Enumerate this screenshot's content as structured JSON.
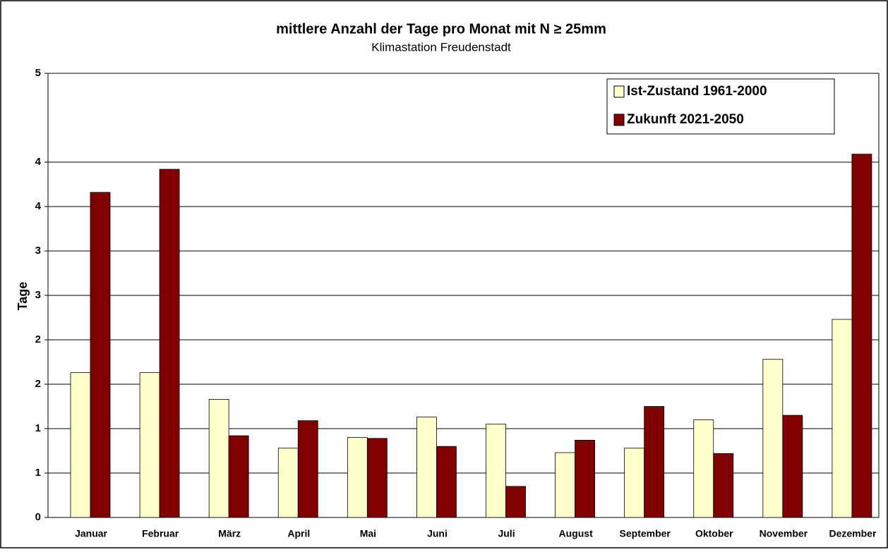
{
  "chart_data": {
    "type": "bar",
    "title": "mittlere Anzahl der Tage pro Monat mit N ≥  25mm",
    "subtitle": "Klimastation Freudenstadt",
    "y_label": "Tage",
    "categories": [
      "Januar",
      "Februar",
      "März",
      "April",
      "Mai",
      "Juni",
      "Juli",
      "August",
      "September",
      "Oktober",
      "November",
      "Dezember"
    ],
    "series": [
      {
        "name": "Ist-Zustand 1961-2000",
        "color": "#ffffcc",
        "values": [
          1.63,
          1.63,
          1.33,
          0.78,
          0.9,
          1.13,
          1.05,
          0.73,
          0.78,
          1.1,
          1.78,
          2.23
        ]
      },
      {
        "name": "Zukunft 2021-2050",
        "color": "#800000",
        "values": [
          3.66,
          3.92,
          0.92,
          1.09,
          0.89,
          0.8,
          0.35,
          0.87,
          1.25,
          0.72,
          1.15,
          4.09
        ]
      }
    ],
    "ylim": [
      0,
      5
    ],
    "yticks": [
      0,
      {
        "value": 0.5,
        "label": "1"
      },
      1,
      {
        "value": 1.5,
        "label": "2"
      },
      2,
      {
        "value": 2.5,
        "label": "3"
      },
      3,
      {
        "value": 3.5,
        "label": "4"
      },
      4,
      5
    ],
    "grid": true,
    "legend": "top-right"
  }
}
